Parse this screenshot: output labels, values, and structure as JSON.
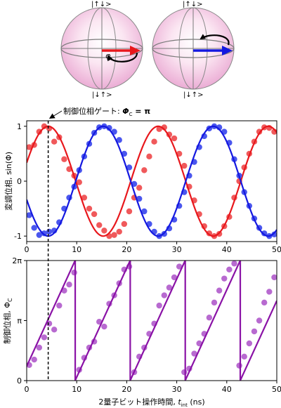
{
  "figure": {
    "sphere_labels": {
      "top": "|↑↓>",
      "bottom": "|↓↑>",
      "phi": "φ"
    },
    "annotation": {
      "label_prefix": "制御位相ゲート: ",
      "phi_symbol": "Φ",
      "phi_subscript": "C",
      "label_suffix": " = π",
      "x": 4.3
    },
    "colors": {
      "red": "#e8171c",
      "red_point": "#f0595b",
      "blue": "#1418e0",
      "blue_point": "#4a56ee",
      "purple": "#8a12a6",
      "purple_point": "#b86ad0",
      "sphere_fill": "#f3c3e3",
      "black": "#000000"
    }
  },
  "chart_data": [
    {
      "type": "line",
      "panel": "top",
      "ylabel": "変調位相, sin(Φ)",
      "xlim": [
        0,
        50
      ],
      "ylim": [
        -1.1,
        1.1
      ],
      "xticks": [
        0,
        10,
        20,
        30,
        40,
        50
      ],
      "yticks": [
        -1,
        0,
        1
      ],
      "ytick_labels": [
        "-1",
        "0",
        "1"
      ],
      "period": 22.0,
      "series": [
        {
          "color": "red",
          "points": [
            [
              0.5,
              0.62
            ],
            [
              1.5,
              0.66
            ],
            [
              2.5,
              0.9
            ],
            [
              3.5,
              1.0
            ],
            [
              4.5,
              0.96
            ],
            [
              5.5,
              0.72
            ],
            [
              6.5,
              0.8
            ],
            [
              7.5,
              0.4
            ],
            [
              8.5,
              0.22
            ],
            [
              9.5,
              0.1
            ],
            [
              10.5,
              -0.02
            ],
            [
              11.5,
              -0.3
            ],
            [
              12.5,
              -0.5
            ],
            [
              13.5,
              -0.6
            ],
            [
              14.5,
              -0.8
            ],
            [
              15.5,
              -0.9
            ],
            [
              16.5,
              -1.0
            ],
            [
              17.5,
              -0.98
            ],
            [
              18.5,
              -0.92
            ],
            [
              19.5,
              -0.78
            ],
            [
              20.5,
              -0.55
            ],
            [
              21.5,
              -0.3
            ],
            [
              22.5,
              -0.12
            ],
            [
              23.5,
              0.2
            ],
            [
              24.5,
              0.45
            ],
            [
              25.5,
              0.72
            ],
            [
              26.5,
              0.95
            ],
            [
              27.5,
              0.98
            ],
            [
              28.5,
              0.85
            ],
            [
              29.5,
              0.78
            ],
            [
              30.5,
              0.5
            ],
            [
              31.5,
              0.28
            ],
            [
              32.5,
              -0.1
            ],
            [
              33.5,
              -0.35
            ],
            [
              34.5,
              -0.6
            ],
            [
              35.5,
              -0.82
            ],
            [
              36.5,
              -0.95
            ],
            [
              37.5,
              -1.0
            ],
            [
              38.5,
              -0.96
            ],
            [
              39.5,
              -0.82
            ],
            [
              40.5,
              -0.65
            ],
            [
              41.5,
              -0.3
            ],
            [
              42.5,
              0.0
            ],
            [
              43.5,
              0.25
            ],
            [
              44.5,
              0.5
            ],
            [
              45.5,
              0.72
            ],
            [
              46.5,
              0.9
            ],
            [
              47.5,
              0.98
            ],
            [
              48.5,
              0.97
            ],
            [
              49.5,
              0.9
            ]
          ]
        },
        {
          "color": "blue",
          "points": [
            [
              0.5,
              -0.62
            ],
            [
              1.5,
              -0.85
            ],
            [
              2.5,
              -0.98
            ],
            [
              3.5,
              -0.95
            ],
            [
              4.5,
              -0.92
            ],
            [
              5.5,
              -0.9
            ],
            [
              6.5,
              -0.75
            ],
            [
              7.5,
              -0.5
            ],
            [
              8.5,
              -0.3
            ],
            [
              9.5,
              -0.1
            ],
            [
              10.5,
              0.2
            ],
            [
              11.5,
              0.45
            ],
            [
              12.5,
              0.68
            ],
            [
              13.5,
              0.88
            ],
            [
              14.5,
              0.98
            ],
            [
              15.5,
              1.0
            ],
            [
              16.5,
              0.97
            ],
            [
              17.5,
              0.9
            ],
            [
              18.5,
              0.75
            ],
            [
              19.5,
              0.5
            ],
            [
              20.5,
              0.25
            ],
            [
              21.5,
              -0.05
            ],
            [
              22.5,
              -0.32
            ],
            [
              23.5,
              -0.55
            ],
            [
              24.5,
              -0.78
            ],
            [
              25.5,
              -0.92
            ],
            [
              26.5,
              -1.0
            ],
            [
              27.5,
              -0.96
            ],
            [
              28.5,
              -0.86
            ],
            [
              29.5,
              -0.7
            ],
            [
              30.5,
              -0.45
            ],
            [
              31.5,
              -0.2
            ],
            [
              32.5,
              0.1
            ],
            [
              33.5,
              0.35
            ],
            [
              34.5,
              0.62
            ],
            [
              35.5,
              0.82
            ],
            [
              36.5,
              0.96
            ],
            [
              37.5,
              1.0
            ],
            [
              38.5,
              0.98
            ],
            [
              39.5,
              0.9
            ],
            [
              40.5,
              0.7
            ],
            [
              41.5,
              0.4
            ],
            [
              42.5,
              0.1
            ],
            [
              43.5,
              -0.2
            ],
            [
              44.5,
              -0.45
            ],
            [
              45.5,
              -0.68
            ],
            [
              46.5,
              -0.85
            ],
            [
              47.5,
              -0.95
            ],
            [
              48.5,
              -1.0
            ],
            [
              49.5,
              -0.97
            ]
          ]
        }
      ]
    },
    {
      "type": "line",
      "panel": "bottom",
      "xlabel_prefix": "2量子ビット操作時間, ",
      "xlabel_var": "t",
      "xlabel_sub": "int",
      "xlabel_suffix": " (ns)",
      "ylabel": "制御位相, Φ",
      "ylabel_sub": "C",
      "xlim": [
        0,
        50
      ],
      "ylim": [
        0,
        2
      ],
      "xticks": [
        0,
        10,
        20,
        30,
        40,
        50
      ],
      "yticks": [
        0,
        1,
        2
      ],
      "ytick_labels": [
        "0",
        "π",
        "2π"
      ],
      "y_unit": "π",
      "period": 11.0,
      "slope": 0.1818,
      "intercept": 0.24,
      "series": [
        {
          "color": "purple",
          "points": [
            [
              0.5,
              0.26
            ],
            [
              1.5,
              0.35
            ],
            [
              2.5,
              0.55
            ],
            [
              3.5,
              0.72
            ],
            [
              4.5,
              0.95
            ],
            [
              5.5,
              0.85
            ],
            [
              6.5,
              1.25
            ],
            [
              7.5,
              1.5
            ],
            [
              8.5,
              1.6
            ],
            [
              9.5,
              1.8
            ],
            [
              10.5,
              0.18
            ],
            [
              11.5,
              0.38
            ],
            [
              12.5,
              0.55
            ],
            [
              13.5,
              0.65
            ],
            [
              14.5,
              0.98
            ],
            [
              15.5,
              0.9
            ],
            [
              16.5,
              1.28
            ],
            [
              17.5,
              1.42
            ],
            [
              18.5,
              1.62
            ],
            [
              19.5,
              1.85
            ],
            [
              20.5,
              1.9
            ],
            [
              21.5,
              0.14
            ],
            [
              22.5,
              0.4
            ],
            [
              23.5,
              0.55
            ],
            [
              24.5,
              0.78
            ],
            [
              25.5,
              0.95
            ],
            [
              26.5,
              1.25
            ],
            [
              27.5,
              1.42
            ],
            [
              28.5,
              1.55
            ],
            [
              29.5,
              1.72
            ],
            [
              30.5,
              1.9
            ],
            [
              31.5,
              0.14
            ],
            [
              32.5,
              0.2
            ],
            [
              33.5,
              0.45
            ],
            [
              34.5,
              0.62
            ],
            [
              35.5,
              0.78
            ],
            [
              36.5,
              1.05
            ],
            [
              37.5,
              1.3
            ],
            [
              38.5,
              1.5
            ],
            [
              39.5,
              1.7
            ],
            [
              40.5,
              1.85
            ],
            [
              41.5,
              1.95
            ],
            [
              42.5,
              0.25
            ],
            [
              43.5,
              0.4
            ],
            [
              44.5,
              0.62
            ],
            [
              45.5,
              0.82
            ],
            [
              46.5,
              1.0
            ],
            [
              47.5,
              1.3
            ],
            [
              48.5,
              1.48
            ],
            [
              49.5,
              1.72
            ]
          ]
        }
      ]
    }
  ]
}
